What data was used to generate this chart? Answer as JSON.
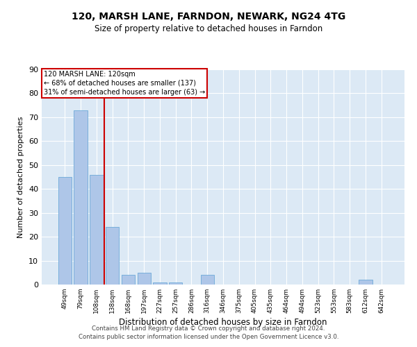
{
  "title1": "120, MARSH LANE, FARNDON, NEWARK, NG24 4TG",
  "title2": "Size of property relative to detached houses in Farndon",
  "xlabel": "Distribution of detached houses by size in Farndon",
  "ylabel": "Number of detached properties",
  "categories": [
    "49sqm",
    "79sqm",
    "108sqm",
    "138sqm",
    "168sqm",
    "197sqm",
    "227sqm",
    "257sqm",
    "286sqm",
    "316sqm",
    "346sqm",
    "375sqm",
    "405sqm",
    "435sqm",
    "464sqm",
    "494sqm",
    "523sqm",
    "553sqm",
    "583sqm",
    "612sqm",
    "642sqm"
  ],
  "values": [
    45,
    73,
    46,
    24,
    4,
    5,
    1,
    1,
    0,
    4,
    0,
    0,
    0,
    0,
    0,
    0,
    0,
    0,
    0,
    2,
    0
  ],
  "bar_color": "#aec6e8",
  "bar_edge_color": "#5a9fd4",
  "vline_x": 2.5,
  "vline_color": "#cc0000",
  "annotation_lines": [
    "120 MARSH LANE: 120sqm",
    "← 68% of detached houses are smaller (137)",
    "31% of semi-detached houses are larger (63) →"
  ],
  "annotation_box_color": "#cc0000",
  "bg_color": "#dce9f5",
  "grid_color": "#ffffff",
  "ylim": [
    0,
    90
  ],
  "yticks": [
    0,
    10,
    20,
    30,
    40,
    50,
    60,
    70,
    80,
    90
  ],
  "footer1": "Contains HM Land Registry data © Crown copyright and database right 2024.",
  "footer2": "Contains public sector information licensed under the Open Government Licence v3.0.",
  "property_bar_index": 2
}
